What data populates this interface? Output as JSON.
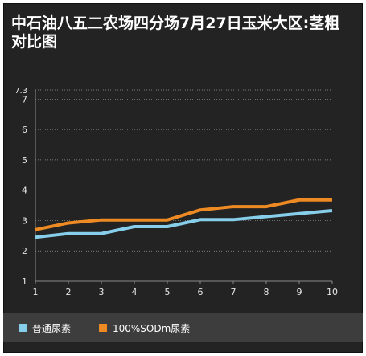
{
  "chart_data": {
    "type": "line",
    "title": "中石油八五二农场四分场7月27日玉米大区:茎粗对比图",
    "categories": [
      "1",
      "2",
      "3",
      "4",
      "5",
      "6",
      "7",
      "8",
      "9",
      "10"
    ],
    "ylim": [
      1,
      7.3
    ],
    "y_ticks": [
      "1",
      "2",
      "3",
      "4",
      "5",
      "6",
      "7",
      "7.3"
    ],
    "grid": true,
    "legend_position": "bottom",
    "series": [
      {
        "name": "普通尿素",
        "color": "#87ceeb",
        "values": [
          2.45,
          2.57,
          2.57,
          2.8,
          2.8,
          3.03,
          3.03,
          3.13,
          3.23,
          3.33
        ]
      },
      {
        "name": "100%SODm尿素",
        "color": "#ee8a23",
        "values": [
          2.7,
          2.92,
          3.02,
          3.02,
          3.02,
          3.35,
          3.46,
          3.46,
          3.68,
          3.68
        ]
      }
    ]
  }
}
